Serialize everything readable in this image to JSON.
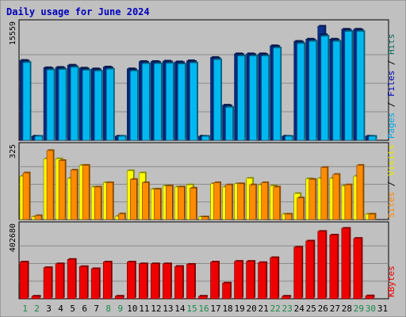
{
  "chart_data": {
    "type": "bar",
    "title": "Daily usage for June 2024",
    "categories": [
      "1",
      "2",
      "3",
      "4",
      "5",
      "6",
      "7",
      "8",
      "9",
      "10",
      "11",
      "12",
      "13",
      "14",
      "15",
      "16",
      "17",
      "18",
      "19",
      "20",
      "21",
      "22",
      "23",
      "24",
      "25",
      "26",
      "27",
      "28",
      "29",
      "30",
      "31"
    ],
    "weekend_days": [
      "1",
      "2",
      "8",
      "9",
      "15",
      "16",
      "22",
      "23",
      "29",
      "30"
    ],
    "panels": [
      {
        "id": "hits",
        "ymax_label": "15559",
        "ymax": 15559,
        "side_label": [
          {
            "text": "Pages",
            "color": "#00a8e8"
          },
          {
            "text": " / ",
            "color": "#000000"
          },
          {
            "text": "Files",
            "color": "#0000bb"
          },
          {
            "text": " / ",
            "color": "#000000"
          },
          {
            "text": "Hits",
            "color": "#107060"
          }
        ],
        "series": [
          {
            "name": "Hits",
            "color": "#0a2f8f",
            "values": [
              10900,
              560,
              9900,
              9950,
              10250,
              9850,
              9750,
              10000,
              560,
              9750,
              10750,
              10750,
              10800,
              10700,
              10850,
              560,
              11300,
              4800,
              11800,
              11800,
              11800,
              12900,
              560,
              13500,
              13800,
              15559,
              13800,
              15150,
              15150,
              560,
              0
            ]
          },
          {
            "name": "Files",
            "color": "#0a2f8f",
            "values": [
              10800,
              550,
              9800,
              9850,
              10150,
              9750,
              9650,
              9900,
              550,
              9650,
              10650,
              10650,
              10700,
              10600,
              10750,
              550,
              11200,
              4700,
              11700,
              11700,
              11700,
              12800,
              550,
              13400,
              13700,
              14400,
              13700,
              15050,
              15050,
              550,
              0
            ]
          },
          {
            "name": "Pages",
            "color": "#00b8f0",
            "values": [
              10600,
              540,
              9600,
              9650,
              9950,
              9550,
              9450,
              9700,
              540,
              9450,
              10450,
              10450,
              10500,
              10400,
              10550,
              540,
              11000,
              4500,
              11500,
              11500,
              11500,
              12600,
              540,
              13200,
              13500,
              14200,
              13500,
              14850,
              14850,
              540,
              0
            ]
          }
        ]
      },
      {
        "id": "visits",
        "ymax_label": "325",
        "ymax": 325,
        "side_label": [
          {
            "text": "Sites",
            "color": "#ff8800"
          },
          {
            "text": " / ",
            "color": "#000000"
          },
          {
            "text": "Visits",
            "color": "#e8e800"
          }
        ],
        "series": [
          {
            "name": "Visits",
            "color": "#ffff00",
            "values": [
              200,
              13,
              280,
              280,
              190,
              250,
              150,
              170,
              15,
              225,
              215,
              140,
              155,
              150,
              160,
              12,
              165,
              150,
              165,
              190,
              160,
              155,
              25,
              120,
              188,
              190,
              190,
              155,
              200,
              25,
              0
            ]
          },
          {
            "name": "Sites",
            "color": "#ff8c00",
            "values": [
              215,
              18,
              318,
              272,
              228,
              250,
              150,
              170,
              26,
              185,
              170,
              140,
              155,
              150,
              145,
              12,
              170,
              160,
              165,
              160,
              170,
              150,
              25,
              100,
              185,
              240,
              208,
              160,
              250,
              25,
              0
            ]
          }
        ]
      },
      {
        "id": "kbytes",
        "ymax_label": "402680",
        "ymax": 402680,
        "side_label": [
          {
            "text": "KBytes",
            "color": "#ee0000"
          }
        ],
        "series": [
          {
            "name": "KBytes",
            "color": "#ee0000",
            "values": [
              210000,
              15000,
              178000,
              200000,
              225000,
              184000,
              172000,
              210000,
              15000,
              210000,
              200000,
              200000,
              200000,
              185000,
              197000,
              15000,
              210000,
              90000,
              214000,
              214000,
              207000,
              235000,
              15000,
              295000,
              330000,
              385000,
              364000,
              402680,
              345000,
              17000,
              0
            ]
          }
        ]
      }
    ]
  }
}
